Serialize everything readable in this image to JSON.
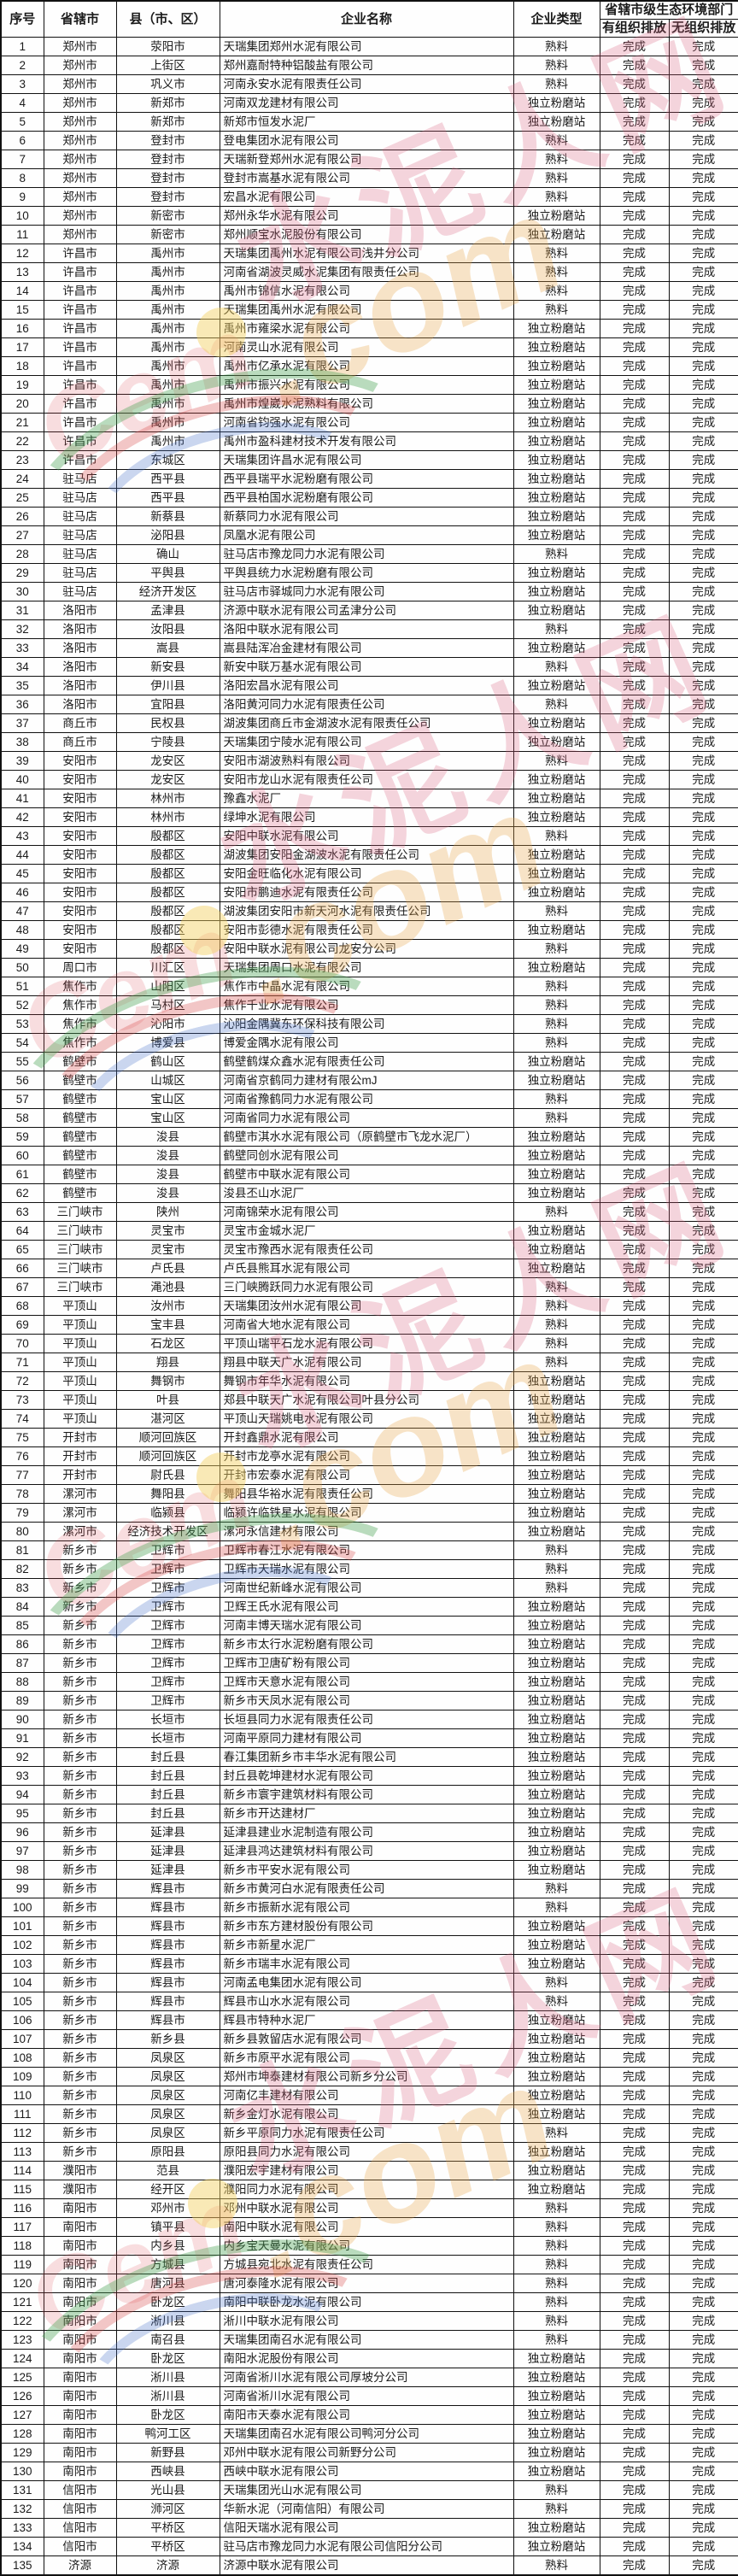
{
  "table": {
    "headers": {
      "no": "序号",
      "city": "省辖市",
      "county": "县（市、区）",
      "company": "企业名称",
      "type": "企业类型",
      "dept_group": "省辖市级生态环境部门",
      "organized": "有组织排放",
      "unorganized": "无组织排放"
    },
    "rows": [
      [
        "1",
        "郑州市",
        "荥阳市",
        "天瑞集团郑州水泥有限公司",
        "熟料",
        "完成",
        "完成"
      ],
      [
        "2",
        "郑州市",
        "上街区",
        "郑州嘉耐特种铝酸盐有限公司",
        "熟料",
        "完成",
        "完成"
      ],
      [
        "3",
        "郑州市",
        "巩义市",
        "河南永安水泥有限责任公司",
        "熟料",
        "完成",
        "完成"
      ],
      [
        "4",
        "郑州市",
        "新郑市",
        "河南双龙建材有限公司",
        "独立粉磨站",
        "完成",
        "完成"
      ],
      [
        "5",
        "郑州市",
        "新郑市",
        "新郑市恒发水泥厂",
        "独立粉磨站",
        "完成",
        "完成"
      ],
      [
        "6",
        "郑州市",
        "登封市",
        "登电集团水泥有限公司",
        "熟料",
        "完成",
        "完成"
      ],
      [
        "7",
        "郑州市",
        "登封市",
        "天瑞新登郑州水泥有限公司",
        "熟料",
        "完成",
        "完成"
      ],
      [
        "8",
        "郑州市",
        "登封市",
        "登封市嵩基水泥有限公司",
        "熟料",
        "完成",
        "完成"
      ],
      [
        "9",
        "郑州市",
        "登封市",
        "宏昌水泥有限公司",
        "熟料",
        "完成",
        "完成"
      ],
      [
        "10",
        "郑州市",
        "新密市",
        "郑州永华水泥有限公司",
        "独立粉磨站",
        "完成",
        "完成"
      ],
      [
        "11",
        "郑州市",
        "新密市",
        "郑州顺宝水泥股份有限公司",
        "独立粉磨站",
        "完成",
        "完成"
      ],
      [
        "12",
        "许昌市",
        "禹州市",
        "天瑞集团禹州水泥有限公司浅井分公司",
        "熟料",
        "完成",
        "完成"
      ],
      [
        "13",
        "许昌市",
        "禹州市",
        "河南省湖波灵威水泥集团有限责任公司",
        "熟料",
        "完成",
        "完成"
      ],
      [
        "14",
        "许昌市",
        "禹州市",
        "禹州市锦信水泥有限公司",
        "熟料",
        "完成",
        "完成"
      ],
      [
        "15",
        "许昌市",
        "禹州市",
        "天瑞集团禹州水泥有限公司",
        "熟料",
        "完成",
        "完成"
      ],
      [
        "16",
        "许昌市",
        "禹州市",
        "禹州市雍梁水泥有限公司",
        "独立粉磨站",
        "完成",
        "完成"
      ],
      [
        "17",
        "许昌市",
        "禹州市",
        "河南灵山水泥有限公司",
        "独立粉磨站",
        "完成",
        "完成"
      ],
      [
        "18",
        "许昌市",
        "禹州市",
        "禹州市亿承水泥有限公司",
        "独立粉磨站",
        "完成",
        "完成"
      ],
      [
        "19",
        "许昌市",
        "禹州市",
        "禹州市振兴水泥有限公司",
        "独立粉磨站",
        "完成",
        "完成"
      ],
      [
        "20",
        "许昌市",
        "禹州市",
        "禹州市煌崴水泥熟料有限公司",
        "独立粉磨站",
        "完成",
        "完成"
      ],
      [
        "21",
        "许昌市",
        "禹州市",
        "河南省钧强水泥有限公司",
        "独立粉磨站",
        "完成",
        "完成"
      ],
      [
        "22",
        "许昌市",
        "禹州市",
        "禹州市盈科建材技术开发有限公司",
        "独立粉磨站",
        "完成",
        "完成"
      ],
      [
        "23",
        "许昌市",
        "东城区",
        "天瑞集团许昌水泥有限公司",
        "独立粉磨站",
        "完成",
        "完成"
      ],
      [
        "24",
        "驻马店",
        "西平县",
        "西平县瑞平水泥粉磨有限公司",
        "独立粉磨站",
        "完成",
        "完成"
      ],
      [
        "25",
        "驻马店",
        "西平县",
        "西平县柏国水泥粉磨有限公司",
        "独立粉磨站",
        "完成",
        "完成"
      ],
      [
        "26",
        "驻马店",
        "新蔡县",
        "新蔡同力水泥有限公司",
        "独立粉磨站",
        "完成",
        "完成"
      ],
      [
        "27",
        "驻马店",
        "泌阳县",
        "凤凰水泥有限公司",
        "独立粉磨站",
        "完成",
        "完成"
      ],
      [
        "28",
        "驻马店",
        "确山",
        "驻马店市豫龙同力水泥有限公司",
        "熟料",
        "完成",
        "完成"
      ],
      [
        "29",
        "驻马店",
        "平舆县",
        "平舆县统力水泥粉磨有限公司",
        "独立粉磨站",
        "完成",
        "完成"
      ],
      [
        "30",
        "驻马店",
        "经济开发区",
        "驻马店市驿城同力水泥有限公司",
        "独立粉磨站",
        "完成",
        "完成"
      ],
      [
        "31",
        "洛阳市",
        "孟津县",
        "济源中联水泥有限公司孟津分公司",
        "独立粉磨站",
        "完成",
        "完成"
      ],
      [
        "32",
        "洛阳市",
        "汝阳县",
        "洛阳中联水泥有限公司",
        "熟料",
        "完成",
        "完成"
      ],
      [
        "33",
        "洛阳市",
        "嵩县",
        "嵩县陆浑冶金建材有限公司",
        "独立粉磨站",
        "完成",
        "完成"
      ],
      [
        "34",
        "洛阳市",
        "新安县",
        "新安中联万基水泥有限公司",
        "熟料",
        "完成",
        "完成"
      ],
      [
        "35",
        "洛阳市",
        "伊川县",
        "洛阳宏昌水泥有限公司",
        "独立粉磨站",
        "完成",
        "完成"
      ],
      [
        "36",
        "洛阳市",
        "宜阳县",
        "洛阳黄河同力水泥有限责任公司",
        "熟料",
        "完成",
        "完成"
      ],
      [
        "37",
        "商丘市",
        "民权县",
        "湖波集团商丘市金湖波水泥有限责任公司",
        "独立粉磨站",
        "完成",
        "完成"
      ],
      [
        "38",
        "商丘市",
        "宁陵县",
        "天瑞集团宁陵水泥有限公司",
        "独立粉磨站",
        "完成",
        "完成"
      ],
      [
        "39",
        "安阳市",
        "龙安区",
        "安阳市湖波熟料有限公司",
        "熟料",
        "完成",
        "完成"
      ],
      [
        "40",
        "安阳市",
        "龙安区",
        "安阳市龙山水泥有限责任公司",
        "独立粉磨站",
        "完成",
        "完成"
      ],
      [
        "41",
        "安阳市",
        "林州市",
        "豫鑫水泥厂",
        "独立粉磨站",
        "完成",
        "完成"
      ],
      [
        "42",
        "安阳市",
        "林州市",
        "绿坤水泥有限公司",
        "独立粉磨站",
        "完成",
        "完成"
      ],
      [
        "43",
        "安阳市",
        "殷都区",
        "安阳中联水泥有限公司",
        "熟料",
        "完成",
        "完成"
      ],
      [
        "44",
        "安阳市",
        "殷都区",
        "湖波集团安阳金湖波水泥有限责任公司",
        "独立粉磨站",
        "完成",
        "完成"
      ],
      [
        "45",
        "安阳市",
        "殷都区",
        "安阳金旺临化水泥有限公司",
        "独立粉磨站",
        "完成",
        "完成"
      ],
      [
        "46",
        "安阳市",
        "殷都区",
        "安阳市鹏迪水泥有限责任公司",
        "独立粉磨站",
        "完成",
        "完成"
      ],
      [
        "47",
        "安阳市",
        "殷都区",
        "湖波集团安阳市新天河水泥有限责任公司",
        "熟料",
        "完成",
        "完成"
      ],
      [
        "48",
        "安阳市",
        "殷都区",
        "安阳市彭德水泥有限责任公司",
        "独立粉磨站",
        "完成",
        "完成"
      ],
      [
        "49",
        "安阳市",
        "殷都区",
        "安阳中联水泥有限公司龙安分公司",
        "熟料",
        "完成",
        "完成"
      ],
      [
        "50",
        "周口市",
        "川汇区",
        "天瑞集团周口水泥有限公司",
        "独立粉磨站",
        "完成",
        "完成"
      ],
      [
        "51",
        "焦作市",
        "山阳区",
        "焦作市中晶水泥有限公司",
        "熟料",
        "完成",
        "完成"
      ],
      [
        "52",
        "焦作市",
        "马村区",
        "焦作千业水泥有限公司",
        "熟料",
        "完成",
        "完成"
      ],
      [
        "53",
        "焦作市",
        "沁阳市",
        "沁阳金隅冀东环保科技有限公司",
        "熟料",
        "完成",
        "完成"
      ],
      [
        "54",
        "焦作市",
        "博爱县",
        "博爱金隅水泥有限公司",
        "熟料",
        "完成",
        "完成"
      ],
      [
        "55",
        "鹤壁市",
        "鹤山区",
        "鹤壁鹤煤众鑫水泥有限责任公司",
        "独立粉磨站",
        "完成",
        "完成"
      ],
      [
        "56",
        "鹤壁市",
        "山城区",
        "河南省京鹤同力建材有限公mJ",
        "独立粉磨站",
        "完成",
        "完成"
      ],
      [
        "57",
        "鹤壁市",
        "宝山区",
        "河南省豫鹤同力水泥有限公司",
        "熟料",
        "完成",
        "完成"
      ],
      [
        "58",
        "鹤壁市",
        "宝山区",
        "河南省同力水泥有限公司",
        "熟料",
        "完成",
        "完成"
      ],
      [
        "59",
        "鹤壁市",
        "浚县",
        "鹤壁市淇水水泥有限公司（原鹤壁市飞龙水泥厂）",
        "独立粉磨站",
        "完成",
        "完成"
      ],
      [
        "60",
        "鹤壁市",
        "浚县",
        "鹤壁同创水泥有限公司",
        "独立粉磨站",
        "完成",
        "完成"
      ],
      [
        "61",
        "鹤壁市",
        "浚县",
        "鹤壁市中联水泥有限公司",
        "独立粉磨站",
        "完成",
        "完成"
      ],
      [
        "62",
        "鹤壁市",
        "浚县",
        "浚县丕山水泥厂",
        "独立粉磨站",
        "完成",
        "完成"
      ],
      [
        "63",
        "三门峡市",
        "陕州",
        "河南锦荣水泥有限公司",
        "熟料",
        "完成",
        "完成"
      ],
      [
        "64",
        "三门峡市",
        "灵宝市",
        "灵宝市金城水泥厂",
        "独立粉磨站",
        "完成",
        "完成"
      ],
      [
        "65",
        "三门峡市",
        "灵宝市",
        "灵宝市豫西水泥有限责任公司",
        "独立粉磨站",
        "完成",
        "完成"
      ],
      [
        "66",
        "三门峡市",
        "卢氏县",
        "卢氏县熊耳水泥有限公司",
        "独立粉磨站",
        "完成",
        "完成"
      ],
      [
        "67",
        "三门峡市",
        "渑池县",
        "三门峡腾跃同力水泥有限公司",
        "熟料",
        "完成",
        "完成"
      ],
      [
        "68",
        "平顶山",
        "汝州市",
        "天瑞集团汝州水泥有限公司",
        "熟料",
        "完成",
        "完成"
      ],
      [
        "69",
        "平顶山",
        "宝丰县",
        "河南省大地水泥有限公司",
        "熟料",
        "完成",
        "完成"
      ],
      [
        "70",
        "平顶山",
        "石龙区",
        "平顶山瑞平石龙水泥有限公司",
        "熟料",
        "完成",
        "完成"
      ],
      [
        "71",
        "平顶山",
        "翔县",
        "翔县中联天广水泥有限公司",
        "熟料",
        "完成",
        "完成"
      ],
      [
        "72",
        "平顶山",
        "舞钢市",
        "舞钢市年华水泥有限公司",
        "独立粉磨站",
        "完成",
        "完成"
      ],
      [
        "73",
        "平顶山",
        "叶县",
        "郑县中联天广水泥有限公司叶县分公司",
        "独立粉磨站",
        "完成",
        "完成"
      ],
      [
        "74",
        "平顶山",
        "湛河区",
        "平顶山天瑞姚电水泥有限公司",
        "独立粉磨站",
        "完成",
        "完成"
      ],
      [
        "75",
        "开封市",
        "顺河回族区",
        "开封鑫鼎水泥有限公司",
        "独立粉磨站",
        "完成",
        "完成"
      ],
      [
        "76",
        "开封市",
        "顺河回族区",
        "开封市龙亭水泥有限公司",
        "独立粉磨站",
        "完成",
        "完成"
      ],
      [
        "77",
        "开封市",
        "尉氏县",
        "开封市宏泰水泥有限公司",
        "独立粉磨站",
        "完成",
        "完成"
      ],
      [
        "78",
        "漯河市",
        "舞阳县",
        "舞阳县华裕水泥有限责任公司",
        "独立粉磨站",
        "完成",
        "完成"
      ],
      [
        "79",
        "漯河市",
        "临颍县",
        "临颍许临铁星水泥有限公司",
        "独立粉磨站",
        "完成",
        "完成"
      ],
      [
        "80",
        "漯河市",
        "经济技术开发区",
        "漯河永信建材有限公司",
        "独立粉磨站",
        "完成",
        "完成"
      ],
      [
        "81",
        "新乡市",
        "卫辉市",
        "卫辉市春江水泥有限公司",
        "熟料",
        "完成",
        "完成"
      ],
      [
        "82",
        "新乡市",
        "卫辉市",
        "卫辉市天瑞水泥有限公司",
        "熟料",
        "完成",
        "完成"
      ],
      [
        "83",
        "新乡市",
        "卫辉市",
        "河南世纪新峰水泥有限公司",
        "熟料",
        "完成",
        "完成"
      ],
      [
        "84",
        "新乡市",
        "卫辉市",
        "卫辉王氏水泥有限公司",
        "独立粉磨站",
        "完成",
        "完成"
      ],
      [
        "85",
        "新乡市",
        "卫辉市",
        "河南丰博天瑞水泥有限公司",
        "独立粉磨站",
        "完成",
        "完成"
      ],
      [
        "86",
        "新乡市",
        "卫辉市",
        "新乡市太行水泥粉磨有限公司",
        "独立粉磨站",
        "完成",
        "完成"
      ],
      [
        "87",
        "新乡市",
        "卫辉市",
        "卫辉市卫唐矿粉有限公司",
        "独立粉磨站",
        "完成",
        "完成"
      ],
      [
        "88",
        "新乡市",
        "卫辉市",
        "卫辉市天意水泥有限公司",
        "独立粉磨站",
        "完成",
        "完成"
      ],
      [
        "89",
        "新乡市",
        "卫辉市",
        "新乡市天凤水泥有限公司",
        "独立粉磨站",
        "完成",
        "完成"
      ],
      [
        "90",
        "新乡市",
        "长垣市",
        "长垣县同力水泥有限责任公司",
        "独立粉磨站",
        "完成",
        "完成"
      ],
      [
        "91",
        "新乡市",
        "长垣市",
        "河南平原同力建材有限公司",
        "独立粉磨站",
        "完成",
        "完成"
      ],
      [
        "92",
        "新乡市",
        "封丘县",
        "春江集团新乡市丰华水泥有限公司",
        "独立粉磨站",
        "完成",
        "完成"
      ],
      [
        "93",
        "新乡市",
        "封丘县",
        "封丘县乾坤建材水泥有限公司",
        "独立粉磨站",
        "完成",
        "完成"
      ],
      [
        "94",
        "新乡市",
        "封丘县",
        "新乡市寰宇建筑材料有限公司",
        "独立粉磨站",
        "完成",
        "完成"
      ],
      [
        "95",
        "新乡市",
        "封丘县",
        "新乡市开达建材厂",
        "独立粉磨站",
        "完成",
        "完成"
      ],
      [
        "96",
        "新乡市",
        "延津县",
        "延津县建业水泥制造有限公司",
        "独立粉磨站",
        "完成",
        "完成"
      ],
      [
        "97",
        "新乡市",
        "延津县",
        "延津县鸿达建筑材料有限公司",
        "独立粉磨站",
        "完成",
        "完成"
      ],
      [
        "98",
        "新乡市",
        "延津县",
        "新乡市平安水泥有限公司",
        "独立粉磨站",
        "完成",
        "完成"
      ],
      [
        "99",
        "新乡市",
        "辉县市",
        "新乡市黄河白水泥有限责任公司",
        "熟料",
        "完成",
        "完成"
      ],
      [
        "100",
        "新乡市",
        "辉县市",
        "新乡市振新水泥有限公司",
        "熟料",
        "完成",
        "完成"
      ],
      [
        "101",
        "新乡市",
        "辉县市",
        "新乡市东方建材股份有限公司",
        "独立粉磨站",
        "完成",
        "完成"
      ],
      [
        "102",
        "新乡市",
        "辉县市",
        "新乡市新星水泥厂",
        "独立粉磨站",
        "完成",
        "完成"
      ],
      [
        "103",
        "新乡市",
        "辉县市",
        "新乡市瑞丰水泥有限公司",
        "独立粉磨站",
        "完成",
        "完成"
      ],
      [
        "104",
        "新乡市",
        "辉县市",
        "河南孟电集团水泥有限公司",
        "熟料",
        "完成",
        "完成"
      ],
      [
        "105",
        "新乡市",
        "辉县市",
        "辉县市山水水泥有限公司",
        "熟料",
        "完成",
        "完成"
      ],
      [
        "106",
        "新乡市",
        "辉县市",
        "辉县市特种水泥厂",
        "独立粉磨站",
        "完成",
        "完成"
      ],
      [
        "107",
        "新乡市",
        "新乡县",
        "新乡县敦留店水泥有限公司",
        "独立粉磨站",
        "完成",
        "完成"
      ],
      [
        "108",
        "新乡市",
        "凤泉区",
        "新乡市原平水泥有限公司",
        "独立粉磨站",
        "完成",
        "完成"
      ],
      [
        "109",
        "新乡市",
        "凤泉区",
        "郑州市坤泰建材有限公司新乡分公司",
        "独立粉磨站",
        "完成",
        "完成"
      ],
      [
        "110",
        "新乡市",
        "凤泉区",
        "河南亿丰建材有限公司",
        "独立粉磨站",
        "完成",
        "完成"
      ],
      [
        "111",
        "新乡市",
        "凤泉区",
        "新乡金灯水泥有限公司",
        "独立粉磨站",
        "完成",
        "完成"
      ],
      [
        "112",
        "新乡市",
        "凤泉区",
        "新乡平原同力水泥有限责任公司",
        "熟料",
        "完成",
        "完成"
      ],
      [
        "113",
        "新乡市",
        "原阳县",
        "原阳县同力水泥有限公司",
        "独立粉磨站",
        "完成",
        "完成"
      ],
      [
        "114",
        "濮阳市",
        "范县",
        "濮阳宏宇建材有限公司",
        "独立粉磨站",
        "完成",
        "完成"
      ],
      [
        "115",
        "濮阳市",
        "经开区",
        "濮阳同力水泥有限公司",
        "独立粉磨站",
        "完成",
        "完成"
      ],
      [
        "116",
        "南阳市",
        "邓州市",
        "邓州中联水泥有限公司",
        "熟料",
        "完成",
        "完成"
      ],
      [
        "117",
        "南阳市",
        "镇平县",
        "南阳中联水泥有限公司",
        "熟料",
        "完成",
        "完成"
      ],
      [
        "118",
        "南阳市",
        "内乡县",
        "内乡宝天曼水泥有限公司",
        "熟料",
        "完成",
        "完成"
      ],
      [
        "119",
        "南阳市",
        "方城县",
        "方城县宛北水泥有限责任公司",
        "熟料",
        "完成",
        "完成"
      ],
      [
        "120",
        "南阳市",
        "唐河县",
        "唐河泰隆水泥有限公司",
        "熟料",
        "完成",
        "完成"
      ],
      [
        "121",
        "南阳市",
        "卧龙区",
        "南阳中联卧龙水泥有限公司",
        "熟料",
        "完成",
        "完成"
      ],
      [
        "122",
        "南阳市",
        "淅川县",
        "淅川中联水泥有限公司",
        "熟料",
        "完成",
        "完成"
      ],
      [
        "123",
        "南阳市",
        "南召县",
        "天瑞集团南召水泥有限公司",
        "熟料",
        "完成",
        "完成"
      ],
      [
        "124",
        "南阳市",
        "卧龙区",
        "南阳水泥股份有限公司",
        "独立粉磨站",
        "完成",
        "完成"
      ],
      [
        "125",
        "南阳市",
        "淅川县",
        "河南省淅川水泥有限公司厚坡分公司",
        "独立粉磨站",
        "完成",
        "完成"
      ],
      [
        "126",
        "南阳市",
        "淅川县",
        "河南省淅川水泥有限公司",
        "独立粉磨站",
        "完成",
        "完成"
      ],
      [
        "127",
        "南阳市",
        "卧龙区",
        "南阳市天泰水泥有限公司",
        "独立粉磨站",
        "完成",
        "完成"
      ],
      [
        "128",
        "南阳市",
        "鸭河工区",
        "天瑞集团南召水泥有限公司鸭河分公司",
        "独立粉磨站",
        "完成",
        "完成"
      ],
      [
        "129",
        "南阳市",
        "新野县",
        "邓州中联水泥有限公司新野分公司",
        "独立粉磨站",
        "完成",
        "完成"
      ],
      [
        "130",
        "南阳市",
        "西峡县",
        "西峡中联水泥有限公司",
        "独立粉磨站",
        "完成",
        "完成"
      ],
      [
        "131",
        "信阳市",
        "光山县",
        "天瑞集团光山水泥有限公司",
        "熟料",
        "完成",
        "完成"
      ],
      [
        "132",
        "信阳市",
        "浉河区",
        "华新水泥（河南信阳）有限公司",
        "熟料",
        "完成",
        "完成"
      ],
      [
        "133",
        "信阳市",
        "平桥区",
        "信阳天瑞水泥有限公司",
        "独立粉磨站",
        "完成",
        "完成"
      ],
      [
        "134",
        "信阳市",
        "平桥区",
        "驻马店市豫龙同力水泥有限公司信阳分公司",
        "独立粉磨站",
        "完成",
        "完成"
      ],
      [
        "135",
        "济源",
        "济源",
        "济源中联水泥有限公司",
        "熟料",
        "完成",
        "完成"
      ]
    ]
  },
  "watermark": {
    "text_cn": "水泥人网",
    "text_com": ".com",
    "text_latin": "Cem",
    "colors": {
      "pink": "#d85c7a",
      "orange": "#e9a64a",
      "yellow": "#f4d060",
      "green": "#4aa454",
      "red": "#d64646",
      "blue": "#466ec8"
    }
  }
}
